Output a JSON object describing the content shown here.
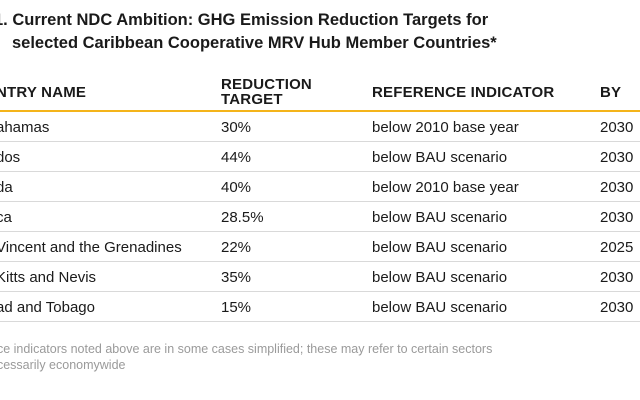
{
  "title": {
    "line1": "1. Current NDC Ambition:  GHG Emission Reduction Targets for",
    "line2": "selected Caribbean Cooperative MRV Hub Member Countries*"
  },
  "table": {
    "headers": {
      "country": "NTRY NAME",
      "target_line1": "REDUCTION",
      "target_line2": "TARGET",
      "reference": "REFERENCE INDICATOR",
      "by": "BY"
    },
    "rows": [
      {
        "country": "ahamas",
        "target": "30%",
        "reference": "below 2010 base year",
        "by": "2030"
      },
      {
        "country": "dos",
        "target": "44%",
        "reference": "below BAU scenario",
        "by": "2030"
      },
      {
        "country": "da",
        "target": "40%",
        "reference": "below 2010 base year",
        "by": "2030"
      },
      {
        "country": "ca",
        "target": "28.5%",
        "reference": "below BAU scenario",
        "by": "2030"
      },
      {
        "country": "Vincent and the Grenadines",
        "target": "22%",
        "reference": "below BAU scenario",
        "by": "2025"
      },
      {
        "country": "Kitts and Nevis",
        "target": "35%",
        "reference": "below BAU scenario",
        "by": "2030"
      },
      {
        "country": "ad and Tobago",
        "target": "15%",
        "reference": "below BAU scenario",
        "by": "2030"
      }
    ]
  },
  "footnote": {
    "line1": "nce indicators noted above are in some cases simplified; these may refer to certain sectors",
    "line2": "ecessarily economywide"
  },
  "colors": {
    "header_rule": "#f4b41a",
    "row_rule": "#d9d9d9",
    "footnote_text": "#9a9a9a"
  }
}
